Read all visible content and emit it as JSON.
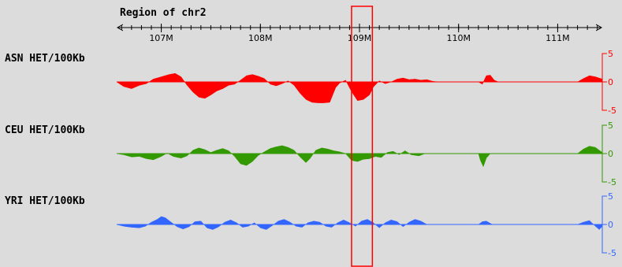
{
  "chart_data": {
    "type": "area",
    "title": "Region of chr2",
    "axis": {
      "unit": "M",
      "tick_values": [
        107,
        108,
        109,
        110,
        111
      ],
      "tick_labels": [
        "107M",
        "108M",
        "109M",
        "110M",
        "111M"
      ],
      "range": [
        106.55,
        111.45
      ]
    },
    "highlight_region": [
      108.92,
      109.13
    ],
    "highlight_color": "#ff0000",
    "tracks": [
      {
        "label": "ASN HET/100Kb",
        "color": "#ff0000",
        "ylim": [
          -5,
          5
        ],
        "scale_labels": [
          "5",
          "0",
          "-5"
        ],
        "points": [
          [
            106.55,
            0
          ],
          [
            106.62,
            -0.8
          ],
          [
            106.7,
            -1.2
          ],
          [
            106.78,
            -0.6
          ],
          [
            106.85,
            -0.3
          ],
          [
            106.92,
            0.5
          ],
          [
            107.0,
            0.9
          ],
          [
            107.08,
            1.3
          ],
          [
            107.14,
            1.5
          ],
          [
            107.2,
            0.9
          ],
          [
            107.26,
            -0.6
          ],
          [
            107.32,
            -1.8
          ],
          [
            107.38,
            -2.7
          ],
          [
            107.44,
            -2.9
          ],
          [
            107.5,
            -2.3
          ],
          [
            107.56,
            -1.6
          ],
          [
            107.62,
            -1.2
          ],
          [
            107.68,
            -0.6
          ],
          [
            107.74,
            -0.4
          ],
          [
            107.8,
            0.3
          ],
          [
            107.86,
            1.1
          ],
          [
            107.92,
            1.3
          ],
          [
            107.98,
            1.0
          ],
          [
            108.04,
            0.6
          ],
          [
            108.1,
            -0.4
          ],
          [
            108.16,
            -0.7
          ],
          [
            108.22,
            -0.3
          ],
          [
            108.28,
            0.2
          ],
          [
            108.34,
            -0.6
          ],
          [
            108.4,
            -2.0
          ],
          [
            108.46,
            -3.1
          ],
          [
            108.52,
            -3.6
          ],
          [
            108.58,
            -3.7
          ],
          [
            108.64,
            -3.7
          ],
          [
            108.7,
            -3.6
          ],
          [
            108.76,
            -1.0
          ],
          [
            108.8,
            -0.2
          ],
          [
            108.86,
            0.3
          ],
          [
            108.92,
            -1.7
          ],
          [
            108.98,
            -3.3
          ],
          [
            109.04,
            -3.1
          ],
          [
            109.1,
            -2.3
          ],
          [
            109.14,
            -0.9
          ],
          [
            109.2,
            0.2
          ],
          [
            109.26,
            -0.3
          ],
          [
            109.32,
            0
          ],
          [
            109.38,
            0.5
          ],
          [
            109.44,
            0.7
          ],
          [
            109.5,
            0.4
          ],
          [
            109.56,
            0.5
          ],
          [
            109.62,
            0.3
          ],
          [
            109.68,
            0.4
          ],
          [
            109.74,
            0.1
          ],
          [
            109.8,
            0
          ],
          [
            110.2,
            0
          ],
          [
            110.24,
            -0.4
          ],
          [
            110.28,
            1.1
          ],
          [
            110.32,
            1.2
          ],
          [
            110.36,
            0.3
          ],
          [
            110.4,
            0
          ],
          [
            111.2,
            0
          ],
          [
            111.26,
            0.6
          ],
          [
            111.32,
            1.1
          ],
          [
            111.38,
            0.9
          ],
          [
            111.45,
            0.5
          ]
        ]
      },
      {
        "label": "CEU HET/100Kb",
        "color": "#339900",
        "ylim": [
          -5,
          5
        ],
        "scale_labels": [
          "5",
          "0",
          "-5"
        ],
        "points": [
          [
            106.55,
            0
          ],
          [
            106.62,
            -0.2
          ],
          [
            106.7,
            -0.6
          ],
          [
            106.78,
            -0.5
          ],
          [
            106.85,
            -0.9
          ],
          [
            106.92,
            -1.1
          ],
          [
            107.0,
            -0.5
          ],
          [
            107.06,
            0.1
          ],
          [
            107.12,
            -0.5
          ],
          [
            107.2,
            -0.8
          ],
          [
            107.26,
            -0.4
          ],
          [
            107.32,
            0.6
          ],
          [
            107.38,
            1.0
          ],
          [
            107.44,
            0.7
          ],
          [
            107.5,
            0.2
          ],
          [
            107.56,
            0.6
          ],
          [
            107.62,
            0.9
          ],
          [
            107.68,
            0.5
          ],
          [
            107.74,
            -0.5
          ],
          [
            107.8,
            -1.8
          ],
          [
            107.86,
            -2.1
          ],
          [
            107.92,
            -1.4
          ],
          [
            107.98,
            -0.3
          ],
          [
            108.04,
            0.3
          ],
          [
            108.1,
            0.9
          ],
          [
            108.16,
            1.2
          ],
          [
            108.22,
            1.4
          ],
          [
            108.28,
            1.1
          ],
          [
            108.34,
            0.6
          ],
          [
            108.4,
            -0.6
          ],
          [
            108.46,
            -1.6
          ],
          [
            108.5,
            -0.9
          ],
          [
            108.56,
            0.6
          ],
          [
            108.62,
            1.0
          ],
          [
            108.68,
            0.8
          ],
          [
            108.74,
            0.5
          ],
          [
            108.8,
            0.3
          ],
          [
            108.86,
            0
          ],
          [
            108.92,
            -1.2
          ],
          [
            108.98,
            -1.4
          ],
          [
            109.04,
            -1.0
          ],
          [
            109.1,
            -0.9
          ],
          [
            109.16,
            -0.5
          ],
          [
            109.22,
            -0.7
          ],
          [
            109.28,
            0.2
          ],
          [
            109.34,
            0.4
          ],
          [
            109.4,
            -0.2
          ],
          [
            109.46,
            0.5
          ],
          [
            109.52,
            -0.2
          ],
          [
            109.6,
            -0.4
          ],
          [
            109.66,
            0
          ],
          [
            110.2,
            0
          ],
          [
            110.22,
            -1.2
          ],
          [
            110.25,
            -2.3
          ],
          [
            110.28,
            -0.8
          ],
          [
            110.32,
            0
          ],
          [
            111.2,
            0
          ],
          [
            111.26,
            0.8
          ],
          [
            111.32,
            1.3
          ],
          [
            111.38,
            1.1
          ],
          [
            111.45,
            0.2
          ]
        ]
      },
      {
        "label": "YRI HET/100Kb",
        "color": "#3366ff",
        "ylim": [
          -5,
          5
        ],
        "scale_labels": [
          "5",
          "0",
          "-5"
        ],
        "points": [
          [
            106.55,
            0
          ],
          [
            106.62,
            -0.3
          ],
          [
            106.7,
            -0.5
          ],
          [
            106.78,
            -0.6
          ],
          [
            106.84,
            -0.3
          ],
          [
            106.9,
            0.4
          ],
          [
            106.96,
            0.9
          ],
          [
            107.0,
            1.4
          ],
          [
            107.04,
            1.2
          ],
          [
            107.1,
            0.4
          ],
          [
            107.16,
            -0.4
          ],
          [
            107.22,
            -0.8
          ],
          [
            107.28,
            -0.4
          ],
          [
            107.34,
            0.5
          ],
          [
            107.4,
            0.6
          ],
          [
            107.46,
            -0.6
          ],
          [
            107.52,
            -0.9
          ],
          [
            107.58,
            -0.4
          ],
          [
            107.64,
            0.4
          ],
          [
            107.7,
            0.8
          ],
          [
            107.76,
            0.3
          ],
          [
            107.82,
            -0.5
          ],
          [
            107.88,
            -0.3
          ],
          [
            107.94,
            0.3
          ],
          [
            108.0,
            -0.6
          ],
          [
            108.06,
            -0.9
          ],
          [
            108.12,
            -0.2
          ],
          [
            108.18,
            0.6
          ],
          [
            108.24,
            0.9
          ],
          [
            108.3,
            0.4
          ],
          [
            108.36,
            -0.3
          ],
          [
            108.42,
            -0.5
          ],
          [
            108.48,
            0.3
          ],
          [
            108.54,
            0.6
          ],
          [
            108.6,
            0.4
          ],
          [
            108.66,
            -0.3
          ],
          [
            108.72,
            -0.5
          ],
          [
            108.78,
            0.3
          ],
          [
            108.84,
            0.8
          ],
          [
            108.9,
            0.3
          ],
          [
            108.96,
            -0.3
          ],
          [
            109.02,
            0.6
          ],
          [
            109.08,
            0.9
          ],
          [
            109.14,
            0.3
          ],
          [
            109.2,
            -0.6
          ],
          [
            109.26,
            0.3
          ],
          [
            109.32,
            0.8
          ],
          [
            109.38,
            0.5
          ],
          [
            109.44,
            -0.4
          ],
          [
            109.5,
            0.4
          ],
          [
            109.56,
            0.9
          ],
          [
            109.62,
            0.6
          ],
          [
            109.68,
            0
          ],
          [
            110.2,
            0
          ],
          [
            110.24,
            0.5
          ],
          [
            110.28,
            0.6
          ],
          [
            110.34,
            0
          ],
          [
            111.2,
            0
          ],
          [
            111.26,
            0.4
          ],
          [
            111.32,
            0.7
          ],
          [
            111.38,
            -0.3
          ],
          [
            111.42,
            -0.9
          ],
          [
            111.45,
            -0.3
          ]
        ]
      }
    ]
  }
}
